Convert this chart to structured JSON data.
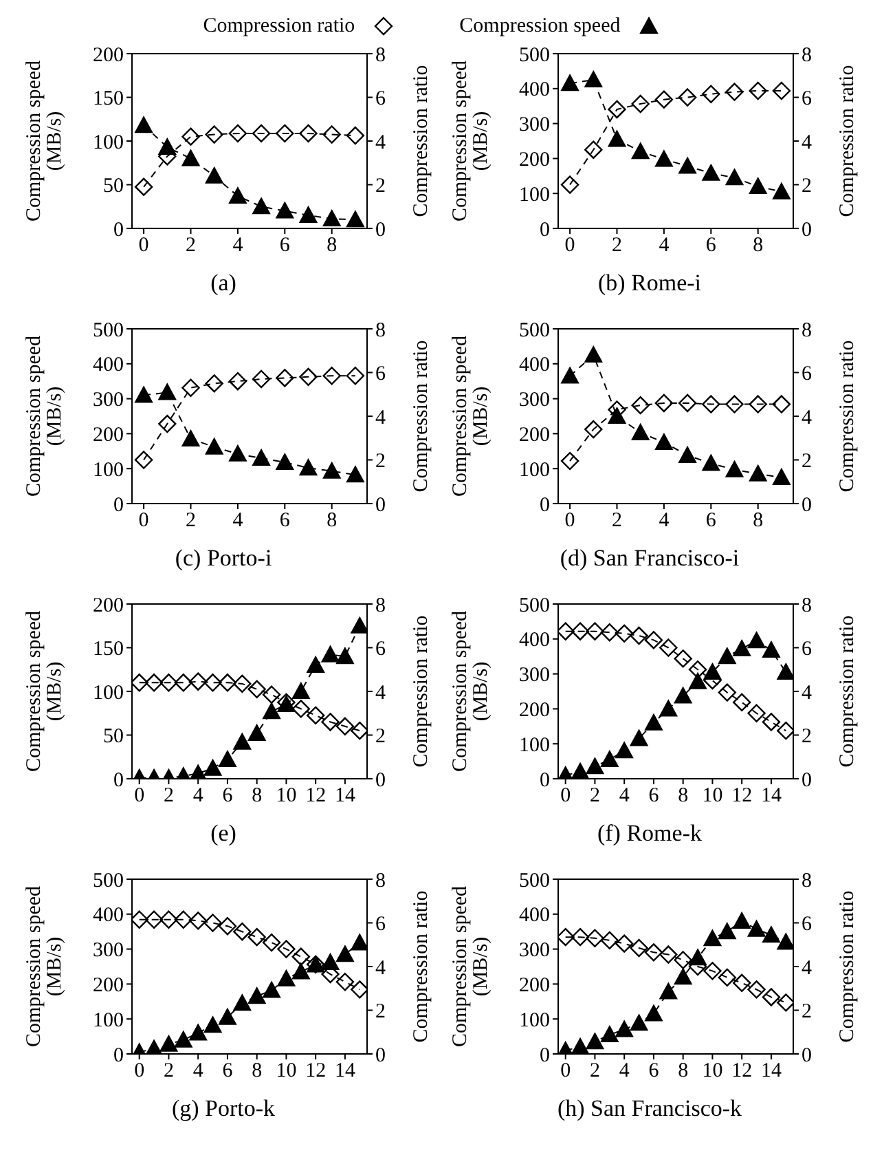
{
  "chart_data": [
    {
      "type": "line",
      "title": "(a)",
      "ylabel": "Compression speed (MB/s)",
      "y2label": "Compression ratio",
      "x": [
        0,
        1,
        2,
        3,
        4,
        5,
        6,
        7,
        8,
        9
      ],
      "xlim": [
        -0.5,
        9.5
      ],
      "xticks": [
        0,
        2,
        4,
        6,
        8
      ],
      "ylim": [
        0,
        200
      ],
      "yticks": [
        0,
        50,
        100,
        150,
        200
      ],
      "y2lim": [
        0,
        8
      ],
      "y2ticks": [
        0,
        2,
        4,
        6,
        8
      ],
      "legend": "top",
      "line_style": "dashed",
      "series": [
        {
          "name": "Compression ratio",
          "color": "#000000",
          "marker": "diamond",
          "axis": "y2",
          "values": [
            1.9,
            3.3,
            4.2,
            4.3,
            4.35,
            4.35,
            4.35,
            4.35,
            4.3,
            4.25
          ]
        },
        {
          "name": "Compression speed",
          "color": "#000000",
          "marker": "triangle",
          "values": [
            118,
            93,
            80,
            60,
            37,
            25,
            20,
            15,
            11,
            10
          ]
        }
      ]
    },
    {
      "type": "line",
      "title": "(b) Rome-i",
      "ylabel": "Compression speed (MB/s)",
      "y2label": "Compression ratio",
      "x": [
        0,
        1,
        2,
        3,
        4,
        5,
        6,
        7,
        8,
        9
      ],
      "xlim": [
        -0.5,
        9.5
      ],
      "xticks": [
        0,
        2,
        4,
        6,
        8
      ],
      "ylim": [
        0,
        500
      ],
      "yticks": [
        0,
        100,
        200,
        300,
        400,
        500
      ],
      "y2lim": [
        0,
        8
      ],
      "y2ticks": [
        0,
        2,
        4,
        6,
        8
      ],
      "line_style": "dashed",
      "series": [
        {
          "color": "#000000",
          "marker": "diamond",
          "axis": "y2",
          "values": [
            2.0,
            3.6,
            5.45,
            5.7,
            5.9,
            6.0,
            6.15,
            6.25,
            6.3,
            6.3
          ]
        },
        {
          "color": "#000000",
          "marker": "triangle",
          "values": [
            415,
            425,
            255,
            220,
            198,
            178,
            158,
            145,
            120,
            105
          ]
        }
      ]
    },
    {
      "type": "line",
      "title": "(c) Porto-i",
      "ylabel": "Compression speed (MB/s)",
      "y2label": "Compression ratio",
      "x": [
        0,
        1,
        2,
        3,
        4,
        5,
        6,
        7,
        8,
        9
      ],
      "xlim": [
        -0.5,
        9.5
      ],
      "xticks": [
        0,
        2,
        4,
        6,
        8
      ],
      "ylim": [
        0,
        500
      ],
      "yticks": [
        0,
        100,
        200,
        300,
        400,
        500
      ],
      "y2lim": [
        0,
        8
      ],
      "y2ticks": [
        0,
        2,
        4,
        6,
        8
      ],
      "line_style": "dashed",
      "series": [
        {
          "color": "#000000",
          "marker": "diamond",
          "axis": "y2",
          "values": [
            2.0,
            3.65,
            5.3,
            5.5,
            5.6,
            5.7,
            5.75,
            5.8,
            5.85,
            5.85
          ]
        },
        {
          "color": "#000000",
          "marker": "triangle",
          "values": [
            310,
            318,
            185,
            162,
            142,
            130,
            118,
            102,
            93,
            82
          ]
        }
      ]
    },
    {
      "type": "line",
      "title": "(d) San Francisco-i",
      "ylabel": "Compression speed (MB/s)",
      "y2label": "Compression ratio",
      "x": [
        0,
        1,
        2,
        3,
        4,
        5,
        6,
        7,
        8,
        9
      ],
      "xlim": [
        -0.5,
        9.5
      ],
      "xticks": [
        0,
        2,
        4,
        6,
        8
      ],
      "ylim": [
        0,
        500
      ],
      "yticks": [
        0,
        100,
        200,
        300,
        400,
        500
      ],
      "y2lim": [
        0,
        8
      ],
      "y2ticks": [
        0,
        2,
        4,
        6,
        8
      ],
      "line_style": "dashed",
      "series": [
        {
          "color": "#000000",
          "marker": "diamond",
          "axis": "y2",
          "values": [
            1.95,
            3.4,
            4.3,
            4.5,
            4.6,
            4.6,
            4.55,
            4.55,
            4.55,
            4.55
          ]
        },
        {
          "color": "#000000",
          "marker": "triangle",
          "values": [
            365,
            425,
            250,
            203,
            175,
            138,
            115,
            97,
            85,
            75
          ]
        }
      ]
    },
    {
      "type": "line",
      "title": "(e)",
      "ylabel": "Compression speed (MB/s)",
      "y2label": "Compression ratio",
      "x": [
        0,
        1,
        2,
        3,
        4,
        5,
        6,
        7,
        8,
        9,
        10,
        11,
        12,
        13,
        14,
        15
      ],
      "xlim": [
        -0.5,
        15.5
      ],
      "xticks": [
        0,
        2,
        4,
        6,
        8,
        10,
        12,
        14
      ],
      "ylim": [
        0,
        200
      ],
      "yticks": [
        0,
        50,
        100,
        150,
        200
      ],
      "y2lim": [
        0,
        8
      ],
      "y2ticks": [
        0,
        2,
        4,
        6,
        8
      ],
      "line_style": "dashed",
      "series": [
        {
          "color": "#000000",
          "marker": "diamond",
          "axis": "y2",
          "values": [
            4.4,
            4.4,
            4.4,
            4.4,
            4.45,
            4.4,
            4.4,
            4.35,
            4.1,
            3.85,
            3.5,
            3.2,
            2.9,
            2.6,
            2.4,
            2.2
          ]
        },
        {
          "color": "#000000",
          "marker": "triangle",
          "values": [
            1,
            1,
            1,
            3,
            6,
            12,
            22,
            42,
            52,
            77,
            85,
            100,
            130,
            142,
            140,
            175
          ]
        }
      ]
    },
    {
      "type": "line",
      "title": "(f) Rome-k",
      "ylabel": "Compression speed (MB/s)",
      "y2label": "Compression ratio",
      "x": [
        0,
        1,
        2,
        3,
        4,
        5,
        6,
        7,
        8,
        9,
        10,
        11,
        12,
        13,
        14,
        15
      ],
      "xlim": [
        -0.5,
        15.5
      ],
      "xticks": [
        0,
        2,
        4,
        6,
        8,
        10,
        12,
        14
      ],
      "ylim": [
        0,
        500
      ],
      "yticks": [
        0,
        100,
        200,
        300,
        400,
        500
      ],
      "y2lim": [
        0,
        8
      ],
      "y2ticks": [
        0,
        2,
        4,
        6,
        8
      ],
      "line_style": "dashed",
      "series": [
        {
          "color": "#000000",
          "marker": "diamond",
          "axis": "y2",
          "values": [
            6.75,
            6.75,
            6.75,
            6.7,
            6.65,
            6.55,
            6.35,
            6.0,
            5.5,
            5.0,
            4.5,
            3.95,
            3.5,
            3.0,
            2.6,
            2.2
          ]
        },
        {
          "color": "#000000",
          "marker": "triangle",
          "values": [
            10,
            20,
            35,
            55,
            80,
            115,
            160,
            200,
            237,
            278,
            305,
            350,
            372,
            395,
            368,
            305
          ]
        }
      ]
    },
    {
      "type": "line",
      "title": "(g) Porto-k",
      "ylabel": "Compression speed (MB/s)",
      "y2label": "Compression ratio",
      "x": [
        0,
        1,
        2,
        3,
        4,
        5,
        6,
        7,
        8,
        9,
        10,
        11,
        12,
        13,
        14,
        15
      ],
      "xlim": [
        -0.5,
        15.5
      ],
      "xticks": [
        0,
        2,
        4,
        6,
        8,
        10,
        12,
        14
      ],
      "ylim": [
        0,
        500
      ],
      "yticks": [
        0,
        100,
        200,
        300,
        400,
        500
      ],
      "y2lim": [
        0,
        8
      ],
      "y2ticks": [
        0,
        2,
        4,
        6,
        8
      ],
      "line_style": "dashed",
      "series": [
        {
          "color": "#000000",
          "marker": "diamond",
          "axis": "y2",
          "values": [
            6.15,
            6.15,
            6.15,
            6.15,
            6.1,
            6.0,
            5.85,
            5.6,
            5.35,
            5.1,
            4.8,
            4.45,
            4.1,
            3.65,
            3.3,
            2.95
          ]
        },
        {
          "color": "#000000",
          "marker": "triangle",
          "values": [
            5,
            15,
            28,
            40,
            60,
            82,
            105,
            145,
            165,
            182,
            215,
            235,
            255,
            262,
            285,
            318
          ]
        }
      ]
    },
    {
      "type": "line",
      "title": "(h) San Francisco-k",
      "ylabel": "Compression speed (MB/s)",
      "y2label": "Compression ratio",
      "x": [
        0,
        1,
        2,
        3,
        4,
        5,
        6,
        7,
        8,
        9,
        10,
        11,
        12,
        13,
        14,
        15
      ],
      "xlim": [
        -0.5,
        15.5
      ],
      "xticks": [
        0,
        2,
        4,
        6,
        8,
        10,
        12,
        14
      ],
      "ylim": [
        0,
        500
      ],
      "yticks": [
        0,
        100,
        200,
        300,
        400,
        500
      ],
      "y2lim": [
        0,
        8
      ],
      "y2ticks": [
        0,
        2,
        4,
        6,
        8
      ],
      "line_style": "dashed",
      "series": [
        {
          "color": "#000000",
          "marker": "diamond",
          "axis": "y2",
          "values": [
            5.35,
            5.35,
            5.3,
            5.2,
            5.05,
            4.85,
            4.65,
            4.55,
            4.3,
            4.0,
            3.8,
            3.5,
            3.25,
            2.95,
            2.6,
            2.35
          ]
        },
        {
          "color": "#000000",
          "marker": "triangle",
          "values": [
            10,
            20,
            35,
            55,
            70,
            88,
            115,
            178,
            220,
            275,
            330,
            350,
            380,
            357,
            340,
            320
          ]
        }
      ]
    }
  ]
}
